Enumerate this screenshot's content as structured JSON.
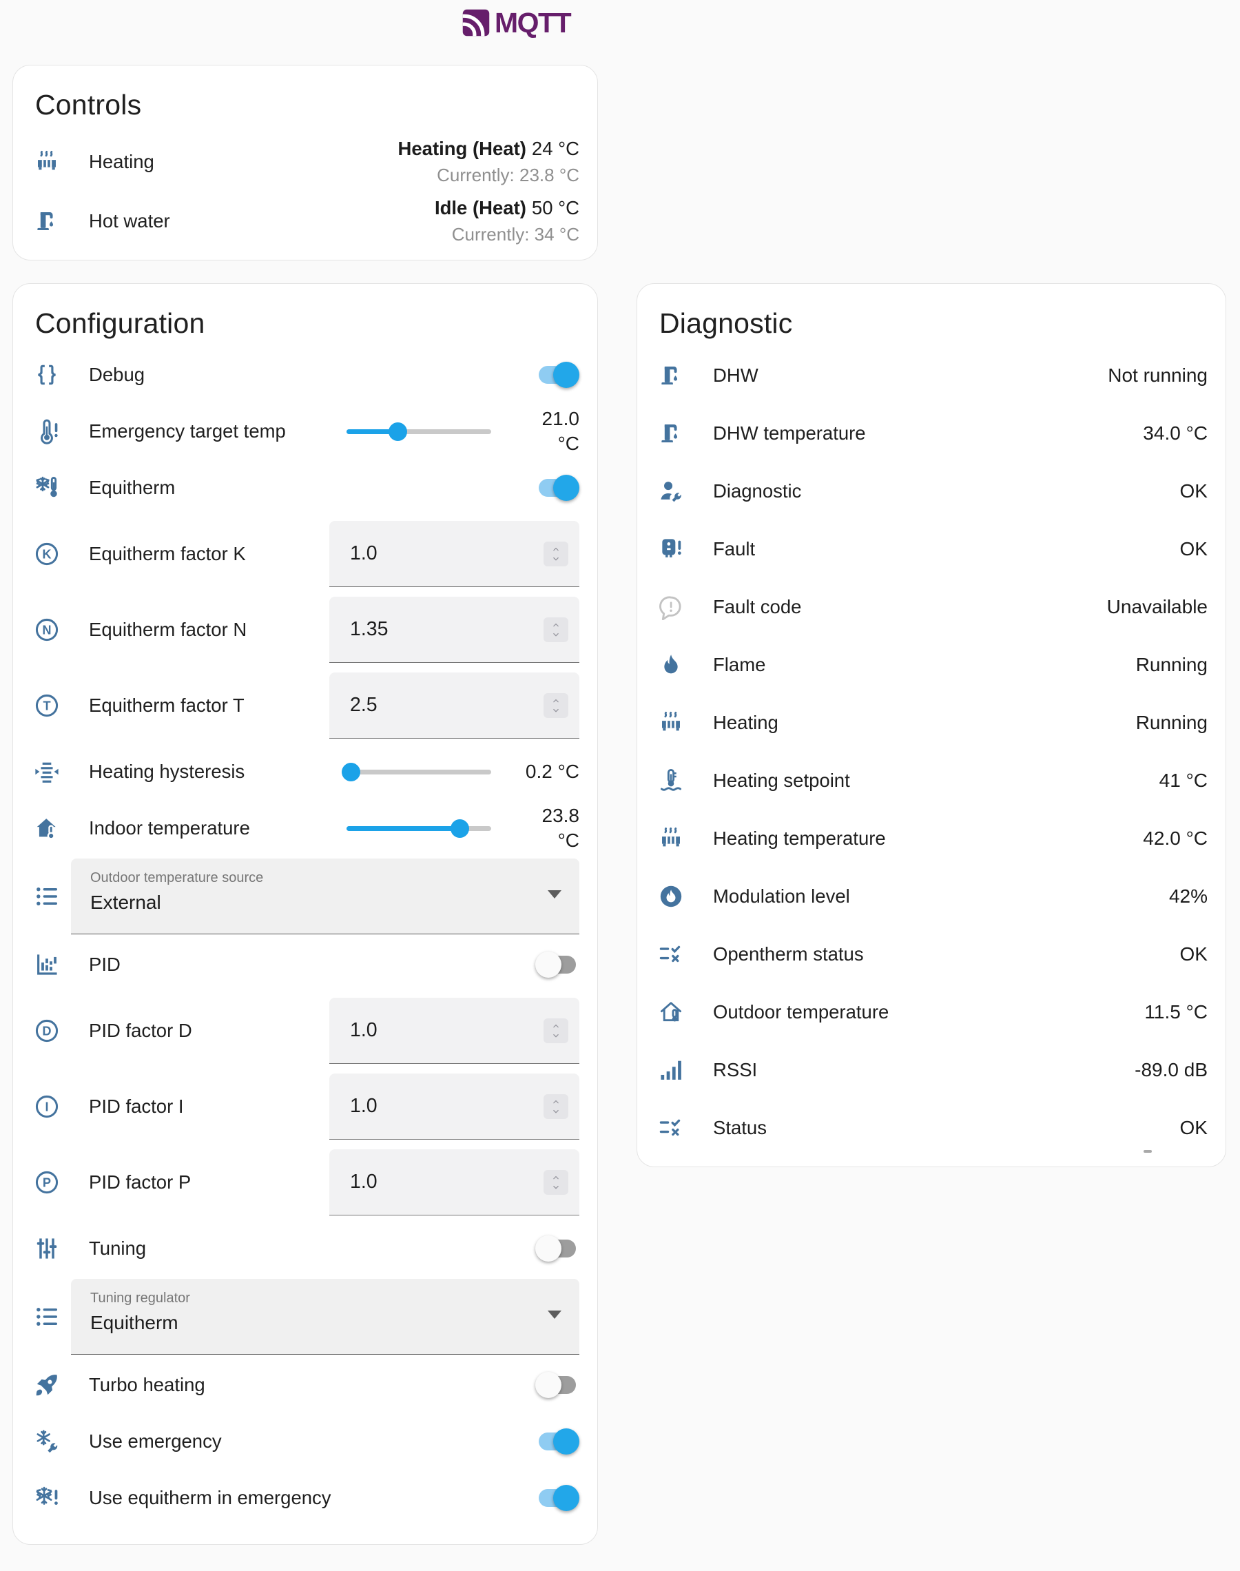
{
  "logo": {
    "text": "MQTT",
    "color": "#661e6b"
  },
  "colors": {
    "icon_blue": "#44739e",
    "icon_muted": "#c3c3c3",
    "toggle_on_knob": "#22a7e9",
    "toggle_on_track": "#8fccf2",
    "toggle_off_knob": "#fafafa",
    "toggle_off_track": "#9d9d9d",
    "slider_active": "#1ba2e8",
    "slider_inactive": "#c9c9c9",
    "card_bg": "#ffffff",
    "page_bg": "#fafafa"
  },
  "controls": {
    "title": "Controls",
    "rows": [
      {
        "icon": "radiator-icon",
        "label": "Heating",
        "state_bold": "Heating (Heat)",
        "state_value": "24 °C",
        "secondary": "Currently: 23.8 °C"
      },
      {
        "icon": "water-tap-icon",
        "label": "Hot water",
        "state_bold": "Idle (Heat)",
        "state_value": "50 °C",
        "secondary": "Currently: 34 °C"
      }
    ]
  },
  "configuration": {
    "title": "Configuration",
    "rows": [
      {
        "type": "toggle",
        "icon": "code-braces-icon",
        "label": "Debug",
        "on": true
      },
      {
        "type": "slider",
        "icon": "thermometer-alert-icon",
        "label": "Emergency target temp",
        "value": "21.0 °C",
        "value_lines": [
          "21.0",
          "°C"
        ],
        "percent": 35
      },
      {
        "type": "toggle",
        "icon": "snowflake-thermometer-icon",
        "label": "Equitherm",
        "on": true
      },
      {
        "type": "number",
        "icon": "alpha-k-circle-icon",
        "label": "Equitherm factor K",
        "value": "1.0"
      },
      {
        "type": "number",
        "icon": "alpha-n-circle-icon",
        "label": "Equitherm factor N",
        "value": "1.35"
      },
      {
        "type": "number",
        "icon": "alpha-t-circle-icon",
        "label": "Equitherm factor T",
        "value": "2.5"
      },
      {
        "type": "slider",
        "icon": "hysteresis-icon",
        "label": "Heating hysteresis",
        "value": "0.2 °C",
        "value_lines": [
          "0.2 °C"
        ],
        "percent": 3
      },
      {
        "type": "slider",
        "icon": "home-thermometer-icon",
        "label": "Indoor temperature",
        "value": "23.8 °C",
        "value_lines": [
          "23.8",
          "°C"
        ],
        "percent": 78
      },
      {
        "type": "select",
        "icon": "list-bulleted-icon",
        "label": "Outdoor temperature source",
        "value": "External"
      },
      {
        "type": "toggle",
        "icon": "chart-bar-icon",
        "label": "PID",
        "on": false
      },
      {
        "type": "number",
        "icon": "alpha-d-circle-icon",
        "label": "PID factor D",
        "value": "1.0"
      },
      {
        "type": "number",
        "icon": "alpha-i-circle-icon",
        "label": "PID factor I",
        "value": "1.0"
      },
      {
        "type": "number",
        "icon": "alpha-p-circle-icon",
        "label": "PID factor P",
        "value": "1.0"
      },
      {
        "type": "toggle",
        "icon": "tune-vertical-icon",
        "label": "Tuning",
        "on": false
      },
      {
        "type": "select",
        "icon": "list-bulleted-icon",
        "label": "Tuning regulator",
        "value": "Equitherm"
      },
      {
        "type": "toggle",
        "icon": "rocket-launch-icon",
        "label": "Turbo heating",
        "on": false
      },
      {
        "type": "toggle",
        "icon": "snowflake-wrench-icon",
        "label": "Use emergency",
        "on": true
      },
      {
        "type": "toggle",
        "icon": "snowflake-alert-icon",
        "label": "Use equitherm in emergency",
        "on": true
      }
    ]
  },
  "diagnostic": {
    "title": "Diagnostic",
    "rows": [
      {
        "icon": "water-tap-icon",
        "label": "DHW",
        "value": "Not running"
      },
      {
        "icon": "water-tap-icon",
        "label": "DHW temperature",
        "value": "34.0 °C"
      },
      {
        "icon": "account-wrench-icon",
        "label": "Diagnostic",
        "value": "OK"
      },
      {
        "icon": "boiler-alert-icon",
        "label": "Fault",
        "value": "OK"
      },
      {
        "icon": "message-alert-icon",
        "label": "Fault code",
        "value": "Unavailable",
        "muted_icon": true
      },
      {
        "icon": "fire-icon",
        "label": "Flame",
        "value": "Running"
      },
      {
        "icon": "radiator-icon",
        "label": "Heating",
        "value": "Running"
      },
      {
        "icon": "thermometer-water-icon",
        "label": "Heating setpoint",
        "value": "41 °C"
      },
      {
        "icon": "radiator-icon",
        "label": "Heating temperature",
        "value": "42.0 °C"
      },
      {
        "icon": "fire-circle-icon",
        "label": "Modulation level",
        "value": "42%"
      },
      {
        "icon": "list-status-icon",
        "label": "Opentherm status",
        "value": "OK"
      },
      {
        "icon": "home-thermometer-outline-icon",
        "label": "Outdoor temperature",
        "value": "11.5 °C"
      },
      {
        "icon": "signal-icon",
        "label": "RSSI",
        "value": "-89.0 dB"
      },
      {
        "icon": "list-status-icon",
        "label": "Status",
        "value": "OK"
      }
    ]
  }
}
